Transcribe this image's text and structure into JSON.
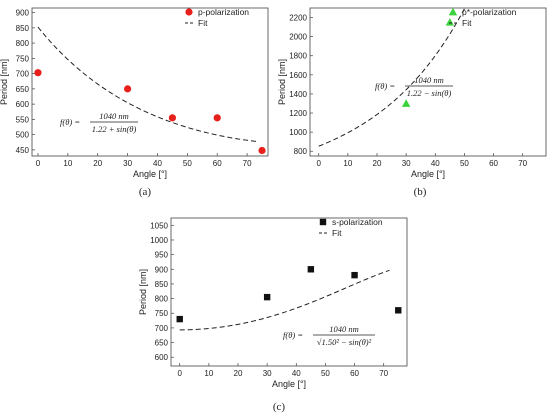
{
  "chart_data": [
    {
      "type": "scatter",
      "caption": "(a)",
      "xlabel": "Angle [°]",
      "ylabel": "Period [nm]",
      "xlim": [
        -2,
        77
      ],
      "ylim": [
        430,
        915
      ],
      "xticks": [
        0,
        10,
        20,
        30,
        40,
        50,
        60,
        70
      ],
      "yticks": [
        450,
        500,
        550,
        600,
        650,
        700,
        750,
        800,
        850,
        900
      ],
      "formula": {
        "lhs": "f(θ) =",
        "num": "1040 nm",
        "den": "1.22 + sin(θ)"
      },
      "legend_position": "top-right",
      "series": [
        {
          "name": "p-polarization",
          "marker": "circle",
          "color": "#e8201c",
          "x": [
            0,
            30,
            45,
            60,
            75
          ],
          "y": [
            703,
            650,
            555,
            555,
            448
          ]
        },
        {
          "name": "Fit",
          "style": "dashed",
          "color": "#222222",
          "formula_key": "p",
          "x_range": [
            0,
            74
          ]
        }
      ]
    },
    {
      "type": "scatter",
      "caption": "(b)",
      "xlabel": "Angle [°]",
      "ylabel": "Period [nm]",
      "xlim": [
        -3,
        78
      ],
      "ylim": [
        750,
        2300
      ],
      "xticks": [
        0,
        10,
        20,
        30,
        40,
        50,
        60,
        70
      ],
      "yticks": [
        800,
        1000,
        1200,
        1400,
        1600,
        1800,
        2000,
        2200
      ],
      "formula": {
        "lhs": "f(θ) =",
        "num": "1040 nm",
        "den": "1.22 − sin(θ)"
      },
      "legend_position": "top-right",
      "series": [
        {
          "name": "p*-polarization",
          "marker": "triangle",
          "color": "#3cd23c",
          "x": [
            30,
            45
          ],
          "y": [
            1300,
            2150
          ]
        },
        {
          "name": "Fit",
          "style": "dashed",
          "color": "#222222",
          "formula_key": "pstar",
          "x_range": [
            0,
            50
          ]
        }
      ]
    },
    {
      "type": "scatter",
      "caption": "(c)",
      "xlabel": "Angle [°]",
      "ylabel": "Period [nm]",
      "xlim": [
        -3,
        78
      ],
      "ylim": [
        570,
        1075
      ],
      "xticks": [
        0,
        10,
        20,
        30,
        40,
        50,
        60,
        70
      ],
      "yticks": [
        600,
        650,
        700,
        750,
        800,
        850,
        900,
        950,
        1000,
        1050
      ],
      "formula": {
        "lhs": "f(θ) =",
        "num": "1040 nm",
        "den": "√1.50² − sin(θ)²"
      },
      "legend_position": "top-right",
      "series": [
        {
          "name": "s-polarization",
          "marker": "square",
          "color": "#111111",
          "x": [
            0,
            30,
            45,
            60,
            75
          ],
          "y": [
            730,
            805,
            900,
            880,
            760
          ]
        },
        {
          "name": "Fit",
          "style": "dashed",
          "color": "#222222",
          "formula_key": "s",
          "x_range": [
            0,
            72
          ]
        }
      ]
    }
  ]
}
